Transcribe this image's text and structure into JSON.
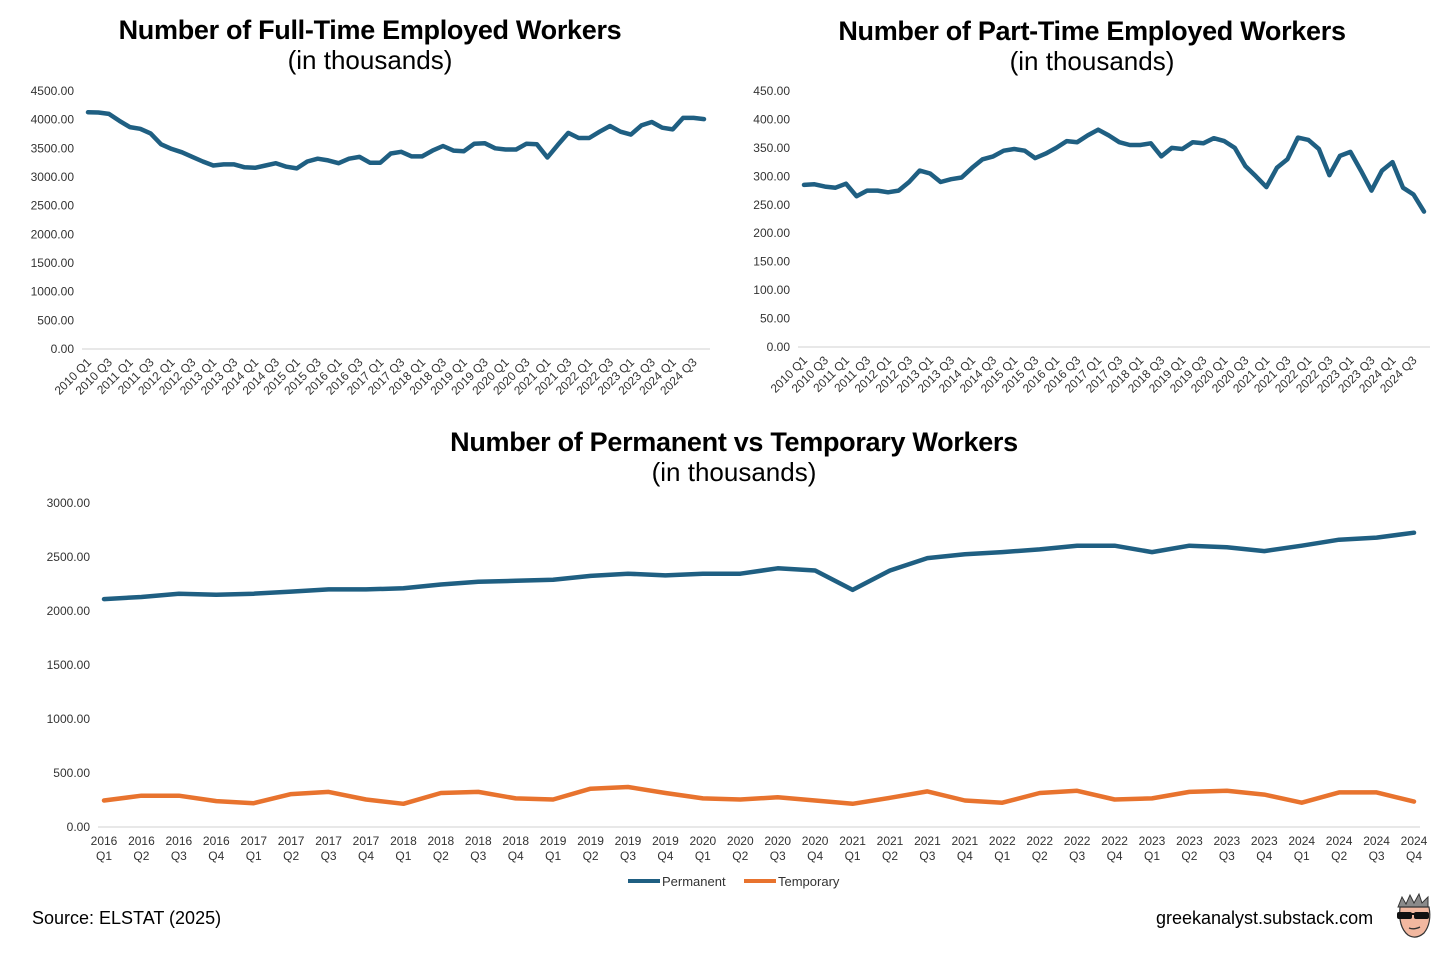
{
  "chart_data": [
    {
      "type": "line",
      "title": "Number of Full-Time Employed Workers",
      "subtitle": "(in thousands)",
      "ylim": [
        0,
        4500
      ],
      "yticks": [
        "0.00",
        "500.00",
        "1000.00",
        "1500.00",
        "2000.00",
        "2500.00",
        "3000.00",
        "3500.00",
        "4000.00",
        "4500.00"
      ],
      "x": [
        "2010 Q1",
        "2010 Q2",
        "2010 Q3",
        "2010 Q4",
        "2011 Q1",
        "2011 Q2",
        "2011 Q3",
        "2011 Q4",
        "2012 Q1",
        "2012 Q2",
        "2012 Q3",
        "2012 Q4",
        "2013 Q1",
        "2013 Q2",
        "2013 Q3",
        "2013 Q4",
        "2014 Q1",
        "2014 Q2",
        "2014 Q3",
        "2014 Q4",
        "2015 Q1",
        "2015 Q2",
        "2015 Q3",
        "2015 Q4",
        "2016 Q1",
        "2016 Q2",
        "2016 Q3",
        "2016 Q4",
        "2017 Q1",
        "2017 Q2",
        "2017 Q3",
        "2017 Q4",
        "2018 Q1",
        "2018 Q2",
        "2018 Q3",
        "2018 Q4",
        "2019 Q1",
        "2019 Q2",
        "2019 Q3",
        "2019 Q4",
        "2020 Q1",
        "2020 Q2",
        "2020 Q3",
        "2020 Q4",
        "2021 Q1",
        "2021 Q2",
        "2021 Q3",
        "2021 Q4",
        "2022 Q1",
        "2022 Q2",
        "2022 Q3",
        "2022 Q4",
        "2023 Q1",
        "2023 Q2",
        "2023 Q3",
        "2023 Q4",
        "2024 Q1",
        "2024 Q2",
        "2024 Q3",
        "2024 Q4"
      ],
      "xticks": [
        "2010 Q1",
        "2010 Q3",
        "2011 Q1",
        "2011 Q3",
        "2012 Q1",
        "2012 Q3",
        "2013 Q1",
        "2013 Q3",
        "2014 Q1",
        "2014 Q3",
        "2015 Q1",
        "2015 Q3",
        "2016 Q1",
        "2016 Q3",
        "2017 Q1",
        "2017 Q3",
        "2018 Q1",
        "2018 Q3",
        "2019 Q1",
        "2019 Q3",
        "2020 Q1",
        "2020 Q3",
        "2021 Q1",
        "2021 Q3",
        "2022 Q1",
        "2022 Q3",
        "2023 Q1",
        "2023 Q3",
        "2024 Q1",
        "2024 Q3"
      ],
      "series": [
        {
          "color": "#1f5f82",
          "values": [
            4130,
            4125,
            4100,
            3980,
            3870,
            3840,
            3760,
            3570,
            3490,
            3430,
            3350,
            3270,
            3200,
            3220,
            3220,
            3170,
            3160,
            3200,
            3240,
            3180,
            3150,
            3270,
            3320,
            3290,
            3240,
            3320,
            3350,
            3250,
            3250,
            3410,
            3440,
            3360,
            3360,
            3460,
            3540,
            3460,
            3450,
            3580,
            3590,
            3500,
            3480,
            3480,
            3580,
            3570,
            3340,
            3560,
            3770,
            3680,
            3680,
            3790,
            3890,
            3790,
            3740,
            3900,
            3960,
            3860,
            3830,
            4030,
            4030,
            4010
          ]
        }
      ]
    },
    {
      "type": "line",
      "title": "Number of Part-Time Employed Workers",
      "subtitle": "(in thousands)",
      "ylim": [
        0,
        450
      ],
      "yticks": [
        "0.00",
        "50.00",
        "100.00",
        "150.00",
        "200.00",
        "250.00",
        "300.00",
        "350.00",
        "400.00",
        "450.00"
      ],
      "x": [
        "2010 Q1",
        "2010 Q2",
        "2010 Q3",
        "2010 Q4",
        "2011 Q1",
        "2011 Q2",
        "2011 Q3",
        "2011 Q4",
        "2012 Q1",
        "2012 Q2",
        "2012 Q3",
        "2012 Q4",
        "2013 Q1",
        "2013 Q2",
        "2013 Q3",
        "2013 Q4",
        "2014 Q1",
        "2014 Q2",
        "2014 Q3",
        "2014 Q4",
        "2015 Q1",
        "2015 Q2",
        "2015 Q3",
        "2015 Q4",
        "2016 Q1",
        "2016 Q2",
        "2016 Q3",
        "2016 Q4",
        "2017 Q1",
        "2017 Q2",
        "2017 Q3",
        "2017 Q4",
        "2018 Q1",
        "2018 Q2",
        "2018 Q3",
        "2018 Q4",
        "2019 Q1",
        "2019 Q2",
        "2019 Q3",
        "2019 Q4",
        "2020 Q1",
        "2020 Q2",
        "2020 Q3",
        "2020 Q4",
        "2021 Q1",
        "2021 Q2",
        "2021 Q3",
        "2021 Q4",
        "2022 Q1",
        "2022 Q2",
        "2022 Q3",
        "2022 Q4",
        "2023 Q1",
        "2023 Q2",
        "2023 Q3",
        "2023 Q4",
        "2024 Q1",
        "2024 Q2",
        "2024 Q3",
        "2024 Q4"
      ],
      "xticks": [
        "2010 Q1",
        "2010 Q3",
        "2011 Q1",
        "2011 Q3",
        "2012 Q1",
        "2012 Q3",
        "2013 Q1",
        "2013 Q3",
        "2014 Q1",
        "2014 Q3",
        "2015 Q1",
        "2015 Q3",
        "2016 Q1",
        "2016 Q3",
        "2017 Q1",
        "2017 Q3",
        "2018 Q1",
        "2018 Q3",
        "2019 Q1",
        "2019 Q3",
        "2020 Q1",
        "2020 Q3",
        "2021 Q1",
        "2021 Q3",
        "2022 Q1",
        "2022 Q3",
        "2023 Q1",
        "2023 Q3",
        "2024 Q1",
        "2024 Q3"
      ],
      "series": [
        {
          "color": "#1f5f82",
          "values": [
            285,
            286,
            282,
            280,
            287,
            265,
            275,
            275,
            272,
            275,
            290,
            310,
            305,
            290,
            295,
            298,
            315,
            330,
            335,
            345,
            348,
            345,
            332,
            340,
            350,
            362,
            360,
            372,
            382,
            372,
            360,
            355,
            355,
            358,
            335,
            350,
            348,
            360,
            358,
            367,
            362,
            350,
            318,
            300,
            281,
            315,
            330,
            368,
            364,
            348,
            302,
            336,
            343,
            310,
            275,
            310,
            325,
            280,
            268,
            238
          ]
        }
      ]
    },
    {
      "type": "line",
      "title": "Number of Permanent vs Temporary Workers",
      "subtitle": "(in thousands)",
      "ylim": [
        0,
        3000
      ],
      "yticks": [
        "0.00",
        "500.00",
        "1000.00",
        "1500.00",
        "2000.00",
        "2500.00",
        "3000.00"
      ],
      "x": [
        [
          "2016",
          "Q1"
        ],
        [
          "2016",
          "Q2"
        ],
        [
          "2016",
          "Q3"
        ],
        [
          "2016",
          "Q4"
        ],
        [
          "2017",
          "Q1"
        ],
        [
          "2017",
          "Q2"
        ],
        [
          "2017",
          "Q3"
        ],
        [
          "2017",
          "Q4"
        ],
        [
          "2018",
          "Q1"
        ],
        [
          "2018",
          "Q2"
        ],
        [
          "2018",
          "Q3"
        ],
        [
          "2018",
          "Q4"
        ],
        [
          "2019",
          "Q1"
        ],
        [
          "2019",
          "Q2"
        ],
        [
          "2019",
          "Q3"
        ],
        [
          "2019",
          "Q4"
        ],
        [
          "2020",
          "Q1"
        ],
        [
          "2020",
          "Q2"
        ],
        [
          "2020",
          "Q3"
        ],
        [
          "2020",
          "Q4"
        ],
        [
          "2021",
          "Q1"
        ],
        [
          "2021",
          "Q2"
        ],
        [
          "2021",
          "Q3"
        ],
        [
          "2021",
          "Q4"
        ],
        [
          "2022",
          "Q1"
        ],
        [
          "2022",
          "Q2"
        ],
        [
          "2022",
          "Q3"
        ],
        [
          "2022",
          "Q4"
        ],
        [
          "2023",
          "Q1"
        ],
        [
          "2023",
          "Q2"
        ],
        [
          "2023",
          "Q3"
        ],
        [
          "2023",
          "Q4"
        ],
        [
          "2024",
          "Q1"
        ],
        [
          "2024",
          "Q2"
        ],
        [
          "2024",
          "Q3"
        ],
        [
          "2024",
          "Q4"
        ]
      ],
      "legend_position": "bottom",
      "series": [
        {
          "name": "Permanent",
          "color": "#1f5f82",
          "values": [
            2110,
            2130,
            2160,
            2150,
            2160,
            2180,
            2200,
            2200,
            2210,
            2245,
            2270,
            2280,
            2290,
            2325,
            2345,
            2330,
            2345,
            2345,
            2395,
            2375,
            2195,
            2375,
            2490,
            2525,
            2545,
            2570,
            2605,
            2605,
            2545,
            2605,
            2590,
            2555,
            2605,
            2660,
            2680,
            2725
          ]
        },
        {
          "name": "Temporary",
          "color": "#e8732e",
          "values": [
            245,
            290,
            290,
            240,
            220,
            305,
            325,
            255,
            215,
            315,
            325,
            265,
            255,
            355,
            370,
            315,
            265,
            255,
            275,
            245,
            215,
            270,
            330,
            245,
            225,
            315,
            335,
            255,
            265,
            325,
            335,
            300,
            225,
            320,
            320,
            235
          ]
        }
      ]
    }
  ],
  "footer": {
    "source": "Source:  ELSTAT (2025)",
    "site": "greekanalyst.substack.com",
    "avatar_icon": "sunglasses-avatar-icon"
  }
}
